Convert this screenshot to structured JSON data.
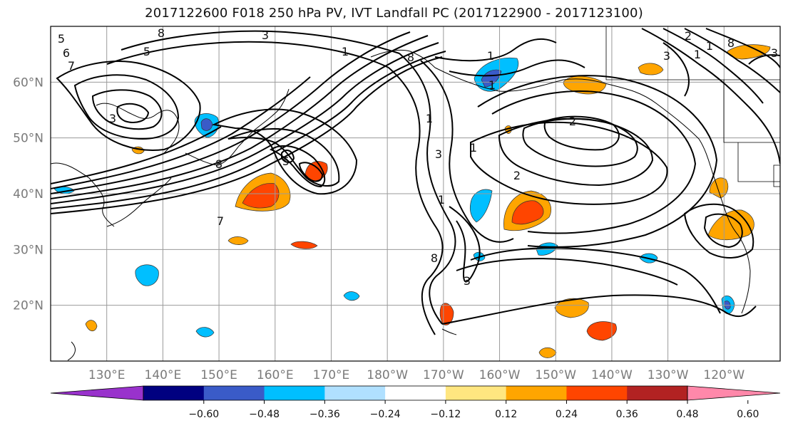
{
  "title": "2017122600 F018 250 hPa PV, IVT Landfall PC (2017122900 - 2017123100)",
  "map": {
    "lon_range": [
      120,
      250
    ],
    "lat_range": [
      10,
      70
    ],
    "lat_ticks": [
      {
        "value": 20,
        "label": "20°N"
      },
      {
        "value": 30,
        "label": "30°N"
      },
      {
        "value": 40,
        "label": "40°N"
      },
      {
        "value": 50,
        "label": "50°N"
      },
      {
        "value": 60,
        "label": "60°N"
      }
    ],
    "lon_ticks": [
      {
        "value": 130,
        "label": "130°E"
      },
      {
        "value": 140,
        "label": "140°E"
      },
      {
        "value": 150,
        "label": "150°E"
      },
      {
        "value": 160,
        "label": "160°E"
      },
      {
        "value": 170,
        "label": "170°E"
      },
      {
        "value": 180,
        "label": "180°W"
      },
      {
        "value": 190,
        "label": "170°W"
      },
      {
        "value": 200,
        "label": "160°W"
      },
      {
        "value": 210,
        "label": "150°W"
      },
      {
        "value": 220,
        "label": "140°W"
      },
      {
        "value": 230,
        "label": "130°W"
      },
      {
        "value": 240,
        "label": "120°W"
      }
    ],
    "contour_labels": [
      "5",
      "6",
      "7",
      "8",
      "3",
      "1",
      "8",
      "5",
      "3",
      "8",
      "1",
      "3",
      "2",
      "1",
      "1",
      "8",
      "1",
      "1",
      "2",
      "3",
      "1",
      "1",
      "8",
      "5",
      "7",
      "3",
      "2",
      "3"
    ]
  },
  "colorbar": {
    "colors": [
      "#9932cc",
      "#000080",
      "#3a5bc8",
      "#00bfff",
      "#b0e0ff",
      "#ffffff",
      "#ffe680",
      "#ffa500",
      "#ff4500",
      "#b22222",
      "#ff88aa"
    ],
    "ticks": [
      "−0.60",
      "−0.48",
      "−0.36",
      "−0.24",
      "−0.12",
      "0.12",
      "0.24",
      "0.36",
      "0.48",
      "0.60"
    ]
  }
}
